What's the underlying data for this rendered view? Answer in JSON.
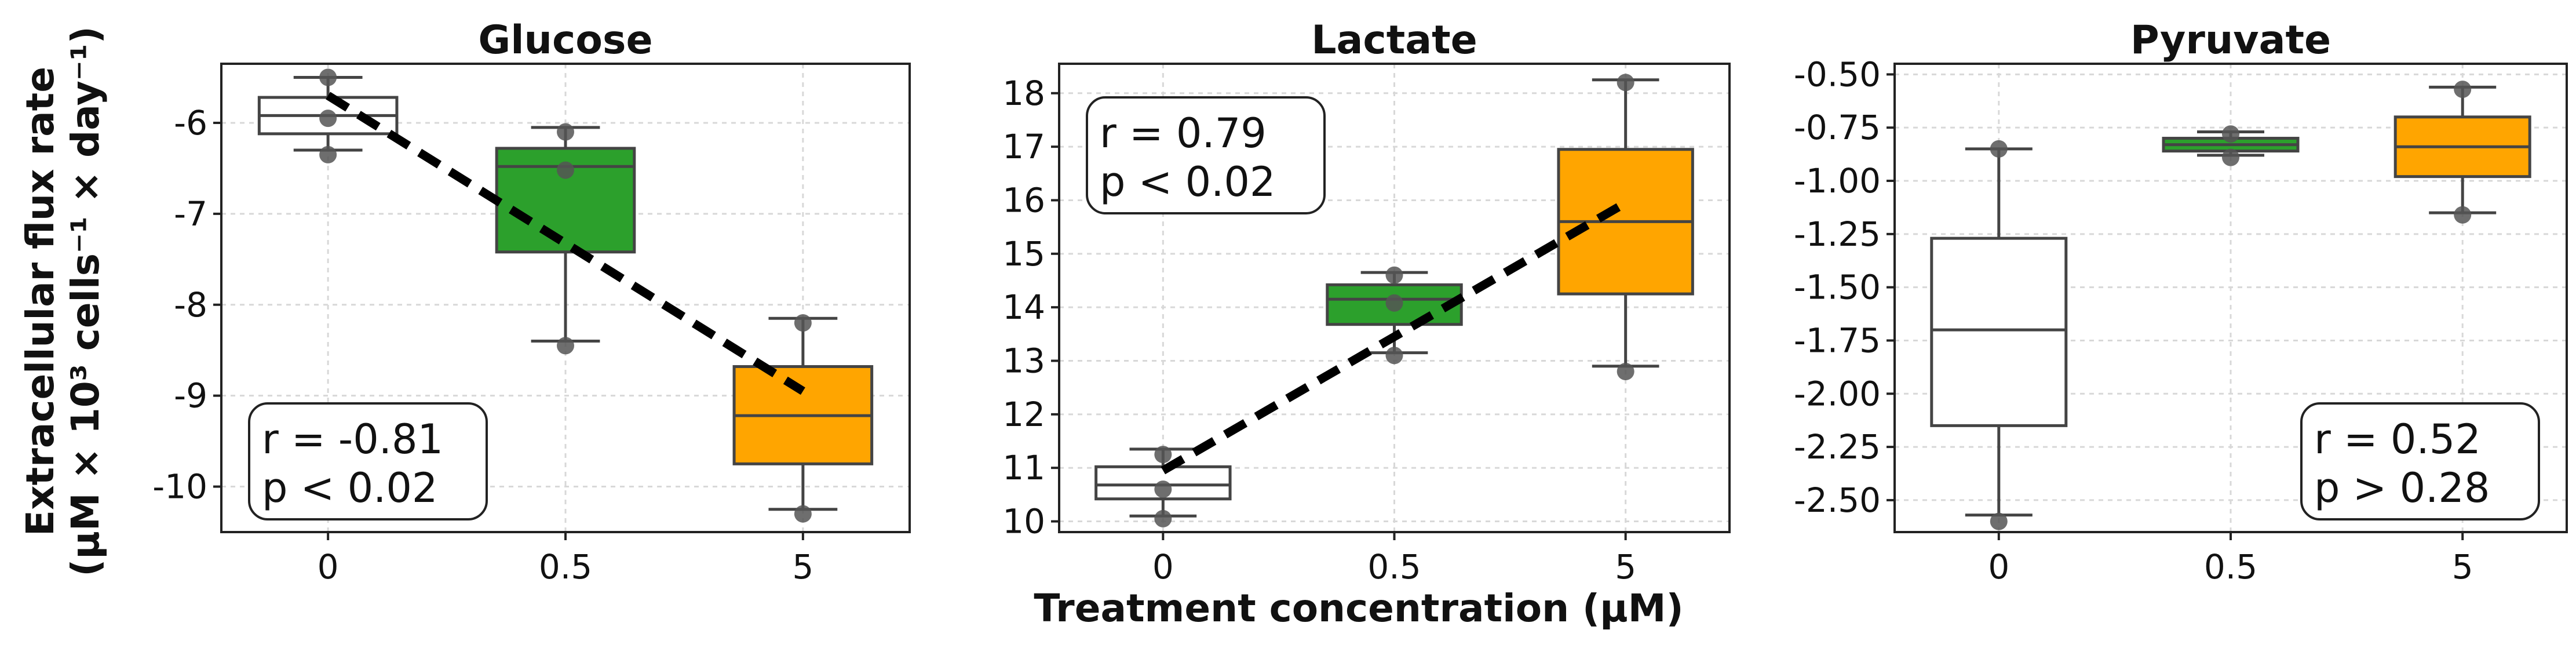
{
  "colors": {
    "control": "#ffffff",
    "mid": "#2ca02c",
    "high": "#ffa500",
    "edge": "#444444",
    "point": "#555555"
  },
  "shared": {
    "xlabel": "Treatment concentration (µM)",
    "ylabel_line1": "Extracellular flux rate",
    "ylabel_line2": "(µM × 10³ cells⁻¹ × day⁻¹)"
  },
  "chart_data": [
    {
      "type": "box",
      "title": "Glucose",
      "categories": [
        "0",
        "0.5",
        "5"
      ],
      "ylim": [
        -10.5,
        -5.35
      ],
      "yticks": [
        -10,
        -9,
        -8,
        -7,
        -6
      ],
      "ytick_labels": [
        "-10",
        "-9",
        "-8",
        "-7",
        "-6"
      ],
      "boxes": [
        {
          "category": "0",
          "q1": -6.12,
          "median": -5.92,
          "q3": -5.72,
          "whisker_low": -6.3,
          "whisker_high": -5.5,
          "points": [
            -5.5,
            -5.95,
            -6.35
          ]
        },
        {
          "category": "0.5",
          "q1": -7.42,
          "median": -6.48,
          "q3": -6.28,
          "whisker_low": -8.4,
          "whisker_high": -6.05,
          "points": [
            -6.1,
            -6.52,
            -8.45
          ]
        },
        {
          "category": "5",
          "q1": -9.75,
          "median": -9.22,
          "q3": -8.68,
          "whisker_low": -10.25,
          "whisker_high": -8.15,
          "points": [
            -8.2,
            -10.3
          ]
        }
      ],
      "trend": {
        "from": [
          0,
          -5.7
        ],
        "to": [
          2,
          -8.95
        ]
      },
      "annotation": {
        "r": "r = -0.81",
        "p": "p < 0.02",
        "position": "bottom-left"
      }
    },
    {
      "type": "box",
      "title": "Lactate",
      "categories": [
        "0",
        "0.5",
        "5"
      ],
      "ylim": [
        9.8,
        18.55
      ],
      "yticks": [
        10,
        11,
        12,
        13,
        14,
        15,
        16,
        17,
        18
      ],
      "ytick_labels": [
        "10",
        "11",
        "12",
        "13",
        "14",
        "15",
        "16",
        "17",
        "18"
      ],
      "boxes": [
        {
          "category": "0",
          "q1": 10.42,
          "median": 10.68,
          "q3": 11.02,
          "whisker_low": 10.1,
          "whisker_high": 11.35,
          "points": [
            11.25,
            10.6,
            10.05
          ]
        },
        {
          "category": "0.5",
          "q1": 13.68,
          "median": 14.15,
          "q3": 14.42,
          "whisker_low": 13.15,
          "whisker_high": 14.65,
          "points": [
            14.6,
            14.08,
            13.1
          ]
        },
        {
          "category": "5",
          "q1": 14.25,
          "median": 15.6,
          "q3": 16.95,
          "whisker_low": 12.9,
          "whisker_high": 18.25,
          "points": [
            18.2,
            12.8
          ]
        }
      ],
      "trend": {
        "from": [
          0,
          10.95
        ],
        "to": [
          2,
          15.95
        ]
      },
      "annotation": {
        "r": "r = 0.79",
        "p": "p < 0.02",
        "position": "top-left"
      }
    },
    {
      "type": "box",
      "title": "Pyruvate",
      "categories": [
        "0",
        "0.5",
        "5"
      ],
      "ylim": [
        -2.65,
        -0.45
      ],
      "yticks": [
        -2.5,
        -2.25,
        -2.0,
        -1.75,
        -1.5,
        -1.25,
        -1.0,
        -0.75,
        -0.5
      ],
      "ytick_labels": [
        "-2.50",
        "-2.25",
        "-2.00",
        "-1.75",
        "-1.50",
        "-1.25",
        "-1.00",
        "-0.75",
        "-0.50"
      ],
      "boxes": [
        {
          "category": "0",
          "q1": -2.15,
          "median": -1.7,
          "q3": -1.27,
          "whisker_low": -2.57,
          "whisker_high": -0.85,
          "points": [
            -0.85,
            -2.6
          ]
        },
        {
          "category": "0.5",
          "q1": -0.86,
          "median": -0.83,
          "q3": -0.8,
          "whisker_low": -0.88,
          "whisker_high": -0.77,
          "points": [
            -0.78,
            -0.89
          ]
        },
        {
          "category": "5",
          "q1": -0.98,
          "median": -0.84,
          "q3": -0.7,
          "whisker_low": -1.15,
          "whisker_high": -0.56,
          "points": [
            -0.57,
            -1.16
          ]
        }
      ],
      "annotation": {
        "r": "r = 0.52",
        "p": "p > 0.28",
        "position": "bottom-right"
      }
    }
  ]
}
